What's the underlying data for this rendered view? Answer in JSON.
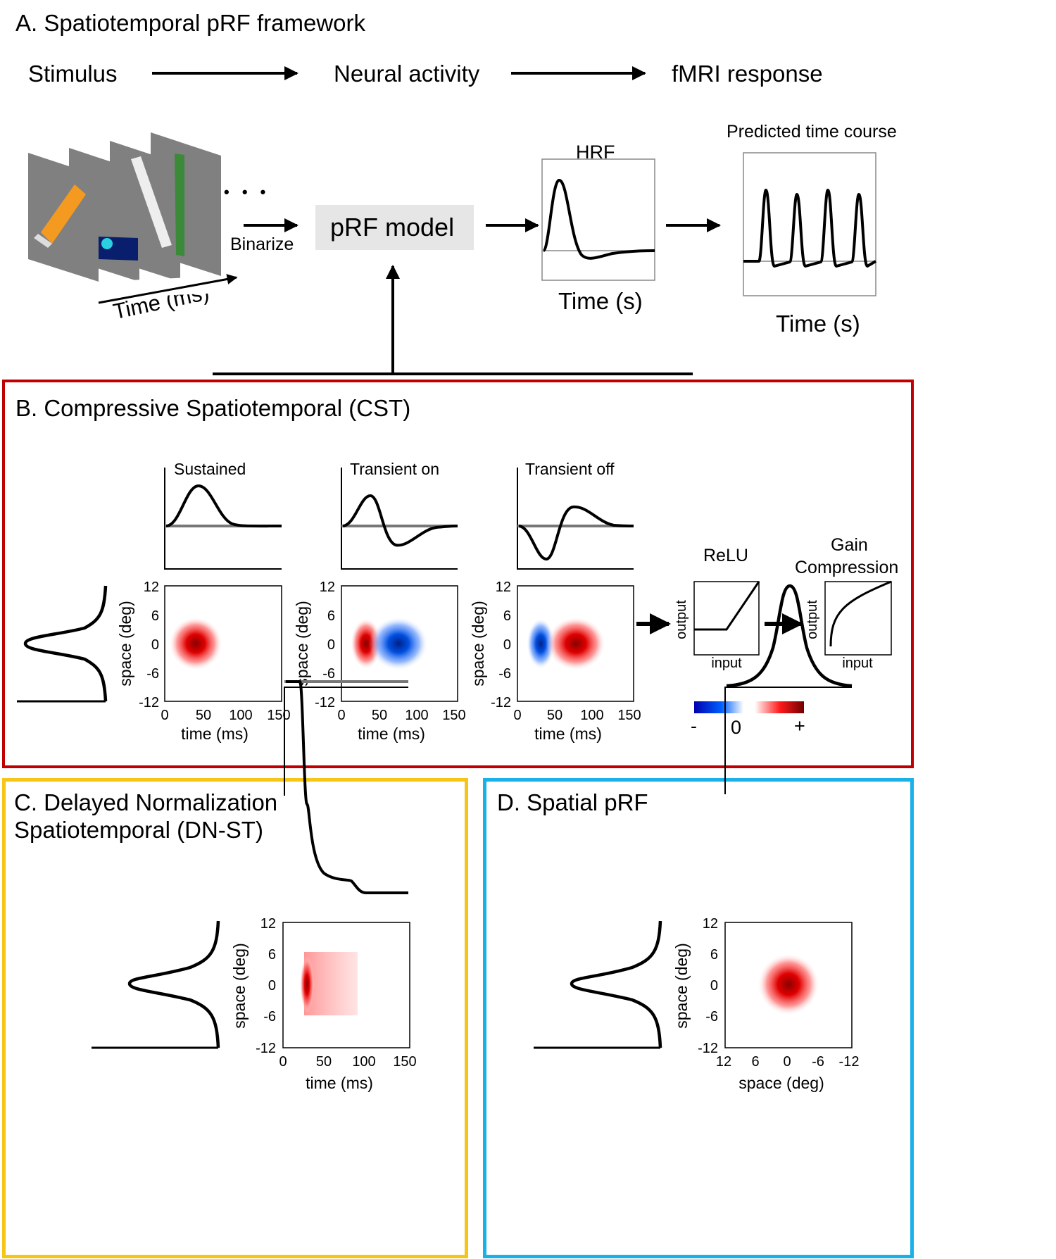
{
  "panelA": {
    "title": "A. Spatiotemporal pRF framework",
    "flow": [
      "Stimulus",
      "Neural activity",
      "fMRI response"
    ],
    "binarize": "Binarize",
    "ellipsis": "• • •",
    "time_ms": "Time (ms)",
    "prf_model": "pRF model",
    "hrf": "HRF",
    "hrf_xlabel": "Time (s)",
    "predicted_title": "Predicted time course",
    "predicted_xlabel": "Time (s)"
  },
  "panelB": {
    "title": "B. Compressive Spatiotemporal (CST)",
    "channels": [
      "Sustained",
      "Transient on",
      "Transient off"
    ],
    "yticks": [
      "12",
      "6",
      "0",
      "-6",
      "-12"
    ],
    "xticks": [
      "0",
      "50",
      "100",
      "150"
    ],
    "ylabel": "space (deg)",
    "xlabel": "time (ms)",
    "relu": "ReLU",
    "gain": [
      "Gain",
      "Compression"
    ],
    "nl_ylabel": "output",
    "nl_xlabel": "input",
    "colorbar": [
      "-",
      "0",
      "+"
    ],
    "colors": {
      "border": "#c00000",
      "pos": "#dd0000",
      "neg": "#0044cc"
    }
  },
  "panelC": {
    "title": [
      "C. Delayed Normalization",
      "Spatiotemporal (DN-ST)"
    ],
    "yticks": [
      "12",
      "6",
      "0",
      "-6",
      "-12"
    ],
    "xticks": [
      "0",
      "50",
      "100",
      "150"
    ],
    "ylabel": "space (deg)",
    "xlabel": "time (ms)",
    "colors": {
      "border": "#f5c518"
    }
  },
  "panelD": {
    "title": "D. Spatial pRF",
    "yticks": [
      "12",
      "6",
      "0",
      "-6",
      "-12"
    ],
    "xticks": [
      "12",
      "6",
      "0",
      "-6",
      "-12"
    ],
    "ylabel": "space (deg)",
    "xlabel": "space (deg)",
    "colors": {
      "border": "#1ab0e8"
    }
  }
}
